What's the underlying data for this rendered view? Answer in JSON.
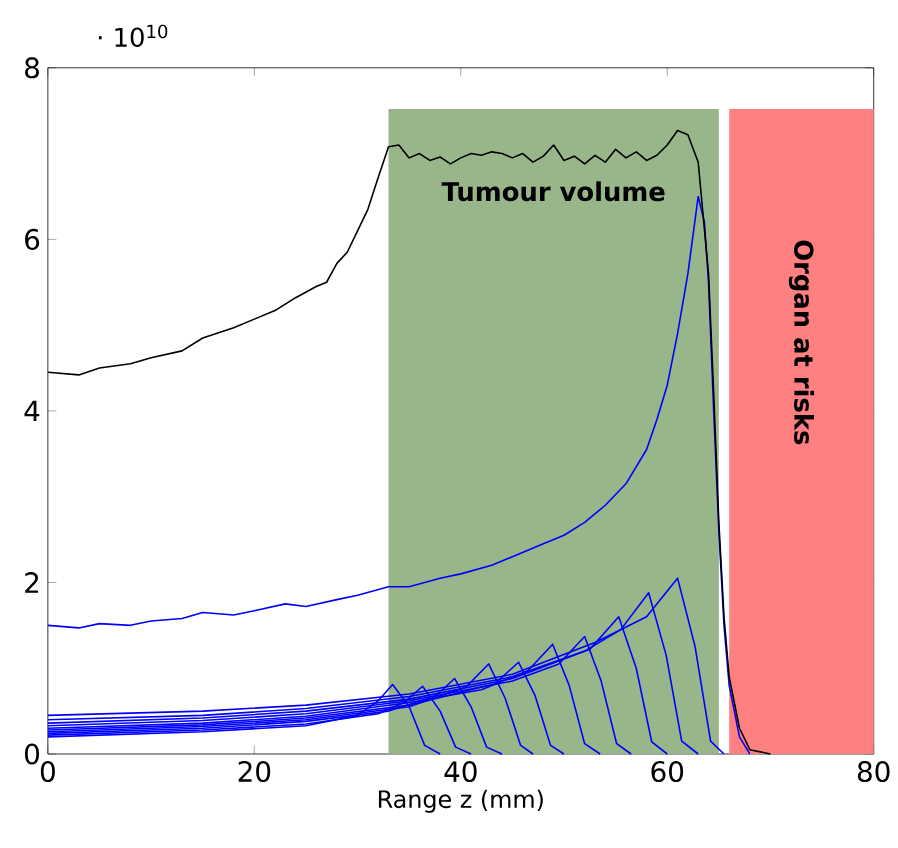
{
  "chart_data": {
    "type": "line",
    "xlabel": "Range z (mm)",
    "annotations": [
      "· 10$^{10}$"
    ],
    "xlim": [
      0,
      80
    ],
    "ylim": [
      0,
      8
    ],
    "xticks": [
      0,
      20,
      40,
      60,
      80
    ],
    "yticks": [
      0,
      2,
      4,
      6,
      8
    ],
    "grid": false,
    "marker": "none",
    "line_style": "solid",
    "bands": [
      {
        "axis": "x",
        "from": 33,
        "to": 65,
        "label": "Tumour volume",
        "color": "#98b68a"
      },
      {
        "axis": "x",
        "from": 66,
        "to": 80,
        "label": "Organ at risks",
        "color": "#ff8080"
      }
    ],
    "series": [
      {
        "color": "#0000ff",
        "x": [
          0,
          15,
          25,
          30,
          32,
          33.4,
          35,
          36.5,
          38
        ],
        "values": [
          0.2,
          0.26,
          0.33,
          0.45,
          0.62,
          0.81,
          0.55,
          0.1,
          0
        ]
      },
      {
        "color": "#0000ff",
        "x": [
          0,
          15,
          25,
          32,
          34.5,
          36.3,
          38,
          39.5,
          41
        ],
        "values": [
          0.22,
          0.28,
          0.35,
          0.47,
          0.6,
          0.79,
          0.5,
          0.08,
          0
        ]
      },
      {
        "color": "#0000ff",
        "x": [
          0,
          15,
          25,
          33,
          37.5,
          39.4,
          41,
          42.5,
          44
        ],
        "values": [
          0.24,
          0.3,
          0.38,
          0.5,
          0.67,
          0.88,
          0.55,
          0.08,
          0
        ]
      },
      {
        "color": "#0000ff",
        "x": [
          0,
          15,
          25,
          35,
          40.5,
          42.7,
          44.3,
          45.8,
          47
        ],
        "values": [
          0.26,
          0.32,
          0.4,
          0.55,
          0.78,
          1.05,
          0.65,
          0.1,
          0
        ]
      },
      {
        "color": "#0000ff",
        "x": [
          0,
          15,
          25,
          35,
          43.3,
          45.6,
          47.2,
          48.7,
          50
        ],
        "values": [
          0.28,
          0.34,
          0.42,
          0.57,
          0.82,
          1.07,
          0.68,
          0.1,
          0
        ]
      },
      {
        "color": "#0000ff",
        "x": [
          0,
          15,
          25,
          35,
          42,
          46.5,
          48.9,
          50.5,
          52,
          53.5
        ],
        "values": [
          0.3,
          0.36,
          0.44,
          0.6,
          0.75,
          0.97,
          1.28,
          0.8,
          0.12,
          0
        ]
      },
      {
        "color": "#0000ff",
        "x": [
          0,
          15,
          25,
          35,
          45,
          49.5,
          52,
          53.6,
          55.1,
          56.5
        ],
        "values": [
          0.33,
          0.39,
          0.47,
          0.62,
          0.85,
          1.05,
          1.37,
          0.85,
          0.12,
          0
        ]
      },
      {
        "color": "#0000ff",
        "x": [
          0,
          15,
          25,
          35,
          45,
          52.5,
          55.3,
          57,
          58.5,
          60
        ],
        "values": [
          0.36,
          0.42,
          0.5,
          0.64,
          0.88,
          1.22,
          1.6,
          1.0,
          0.14,
          0
        ]
      },
      {
        "color": "#0000ff",
        "x": [
          0,
          15,
          25,
          35,
          45,
          52,
          55.5,
          58.2,
          59.9,
          61.4,
          63
        ],
        "values": [
          0.4,
          0.45,
          0.53,
          0.67,
          0.9,
          1.2,
          1.45,
          1.88,
          1.15,
          0.15,
          0
        ]
      },
      {
        "color": "#0000ff",
        "x": [
          0,
          15,
          25,
          35,
          45,
          53,
          58,
          61,
          62.7,
          64.2,
          65.5
        ],
        "values": [
          0.45,
          0.5,
          0.57,
          0.7,
          0.93,
          1.3,
          1.6,
          2.05,
          1.25,
          0.15,
          0
        ]
      },
      {
        "color": "#0000ff",
        "x": [
          0,
          3,
          5,
          8,
          10,
          13,
          15,
          18,
          20,
          23,
          25,
          28,
          30,
          33,
          35,
          38,
          40,
          43,
          45,
          48,
          50,
          52,
          54,
          56,
          58,
          59,
          60,
          61,
          62,
          63,
          63.6,
          64,
          64.5,
          65,
          65.5,
          66,
          67,
          68
        ],
        "values": [
          1.5,
          1.47,
          1.52,
          1.5,
          1.55,
          1.58,
          1.65,
          1.62,
          1.67,
          1.75,
          1.72,
          1.8,
          1.85,
          1.95,
          1.95,
          2.05,
          2.1,
          2.2,
          2.3,
          2.45,
          2.55,
          2.7,
          2.9,
          3.15,
          3.55,
          3.9,
          4.3,
          4.9,
          5.6,
          6.5,
          6.2,
          5.5,
          4.0,
          2.6,
          1.5,
          0.8,
          0.2,
          0
        ]
      },
      {
        "color": "#000000",
        "x": [
          0,
          3,
          5,
          8,
          10,
          13,
          15,
          18,
          20,
          22,
          24,
          26,
          27,
          28,
          29,
          30,
          31,
          32,
          33,
          34,
          35,
          36,
          37,
          38,
          39,
          40,
          41,
          42,
          43,
          44,
          45,
          46,
          47,
          48,
          49,
          50,
          51,
          52,
          53,
          54,
          55,
          56,
          57,
          58,
          59,
          60,
          61,
          62,
          63,
          64,
          64.5,
          65,
          65.5,
          66,
          67,
          68,
          70
        ],
        "values": [
          4.45,
          4.42,
          4.5,
          4.55,
          4.62,
          4.7,
          4.85,
          4.97,
          5.07,
          5.17,
          5.32,
          5.45,
          5.5,
          5.72,
          5.85,
          6.1,
          6.35,
          6.72,
          7.08,
          7.1,
          6.95,
          7.0,
          6.92,
          6.96,
          6.88,
          6.95,
          7.0,
          6.98,
          7.02,
          7.0,
          6.95,
          7.0,
          6.9,
          6.97,
          7.1,
          6.92,
          6.97,
          6.88,
          6.98,
          6.9,
          7.05,
          6.95,
          7.02,
          6.92,
          6.98,
          7.1,
          7.27,
          7.22,
          6.9,
          5.6,
          4.2,
          2.7,
          1.6,
          0.9,
          0.3,
          0.05,
          0
        ]
      }
    ]
  }
}
